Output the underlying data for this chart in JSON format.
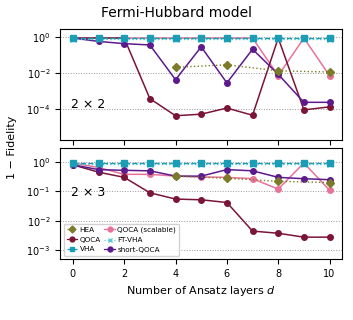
{
  "title": "Fermi-Hubbard model",
  "xlabel": "Number of Ansatz layers $d$",
  "ylabel": "1 − Fidelity",
  "x": [
    0,
    1,
    2,
    3,
    4,
    5,
    6,
    7,
    8,
    9,
    10
  ],
  "panel1_label": "2 × 2",
  "panel2_label": "2 × 3",
  "HEA_color": "#7b7b2a",
  "VHA_color": "#1a9db5",
  "FTVHA_color": "#5bc8d5",
  "QOCA_color": "#7b1535",
  "QOCAscal_color": "#e8729a",
  "shortQOCA_color": "#5c1a8c",
  "p1_HEA": [
    null,
    null,
    null,
    null,
    0.022,
    null,
    0.03,
    null,
    0.014,
    null,
    0.012
  ],
  "p1_VHA": [
    0.92,
    0.92,
    0.92,
    0.92,
    0.92,
    0.92,
    0.92,
    0.92,
    0.92,
    0.92,
    0.92
  ],
  "p1_FTVHA": [
    0.92,
    0.92,
    0.92,
    0.92,
    0.92,
    0.92,
    0.92,
    0.92,
    0.92,
    0.92,
    0.92
  ],
  "p1_QOCA": [
    0.92,
    0.92,
    0.92,
    0.0004,
    4.5e-05,
    5.5e-05,
    0.00012,
    4.8e-05,
    0.92,
    9.5e-05,
    0.00014
  ],
  "p1_QOCAscal": [
    0.92,
    0.92,
    0.92,
    0.92,
    0.92,
    0.92,
    0.92,
    0.92,
    0.0075,
    0.92,
    0.0075
  ],
  "p1_shortQOCA": [
    0.92,
    0.6,
    0.45,
    0.38,
    0.0045,
    0.3,
    0.003,
    0.22,
    0.009,
    0.00025,
    0.00025
  ],
  "p2_HEA": [
    null,
    null,
    null,
    null,
    0.33,
    null,
    0.28,
    null,
    0.22,
    null,
    0.2
  ],
  "p2_VHA": [
    0.92,
    0.92,
    0.92,
    0.92,
    0.92,
    0.92,
    0.92,
    0.92,
    0.92,
    0.92,
    0.92
  ],
  "p2_FTVHA": [
    0.92,
    0.92,
    0.92,
    0.92,
    0.92,
    0.92,
    0.92,
    0.92,
    0.92,
    0.92,
    0.92
  ],
  "p2_QOCA": [
    0.8,
    0.45,
    0.3,
    0.09,
    0.055,
    0.052,
    0.042,
    0.0045,
    0.0038,
    0.0028,
    0.0028
  ],
  "p2_QOCAscal": [
    0.92,
    0.65,
    0.38,
    0.38,
    0.33,
    0.31,
    0.3,
    0.27,
    0.12,
    0.92,
    0.11
  ],
  "p2_shortQOCA": [
    0.8,
    0.55,
    0.52,
    0.5,
    0.33,
    0.33,
    0.55,
    0.5,
    0.3,
    0.27,
    0.25
  ]
}
